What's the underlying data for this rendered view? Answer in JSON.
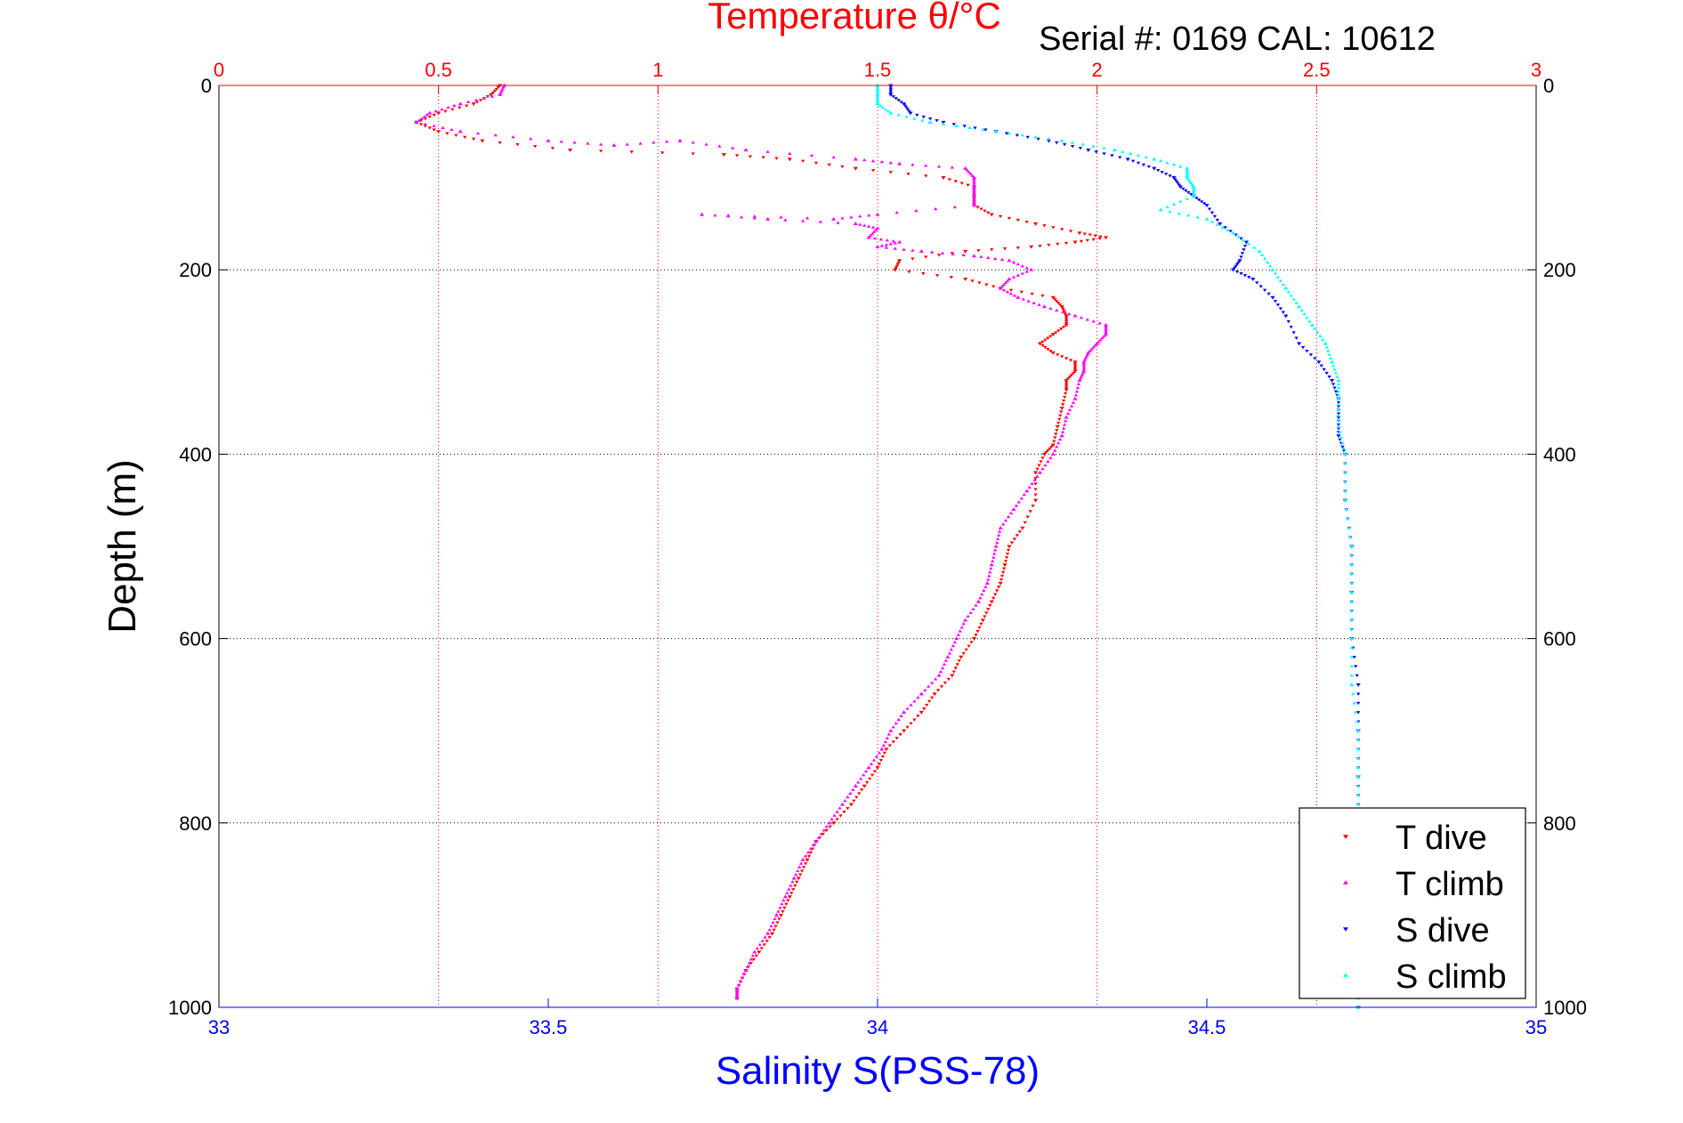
{
  "chart_data": {
    "type": "scatter",
    "title": "Temperature θ/°C",
    "subtitle": "Serial #: 0169 CAL: 10612",
    "ylabel": "Depth (m)",
    "xlabel_bottom": "Salinity S(PSS-78)",
    "y_reversed": true,
    "ylim": [
      0,
      1000
    ],
    "y_ticks": [
      0,
      200,
      400,
      600,
      800,
      1000
    ],
    "x_top": {
      "label": "Temperature θ/°C",
      "lim": [
        0,
        3
      ],
      "ticks": [
        0,
        0.5,
        1,
        1.5,
        2,
        2.5,
        3
      ],
      "tick_labels": [
        "0",
        "0.5",
        "1",
        "1.5",
        "2",
        "2.5",
        "3"
      ]
    },
    "x_bottom": {
      "label": "Salinity S(PSS-78)",
      "lim": [
        33,
        35
      ],
      "ticks": [
        33,
        33.5,
        34,
        34.5,
        35
      ],
      "tick_labels": [
        "33",
        "33.5",
        "34",
        "34.5",
        "35"
      ]
    },
    "grid": true,
    "legend_position": "bottom-right",
    "series": [
      {
        "name": "T dive",
        "axis": "temperature",
        "color": "#ff0000",
        "marker": "triangle-down",
        "points": [
          [
            0.64,
            0
          ],
          [
            0.62,
            10
          ],
          [
            0.58,
            20
          ],
          [
            0.5,
            30
          ],
          [
            0.45,
            40
          ],
          [
            0.5,
            50
          ],
          [
            0.6,
            60
          ],
          [
            0.8,
            70
          ],
          [
            1.15,
            75
          ],
          [
            1.3,
            80
          ],
          [
            1.45,
            90
          ],
          [
            1.65,
            100
          ],
          [
            1.72,
            110
          ],
          [
            1.72,
            120
          ],
          [
            1.72,
            130
          ],
          [
            1.76,
            140
          ],
          [
            1.86,
            150
          ],
          [
            1.96,
            160
          ],
          [
            2.02,
            165
          ],
          [
            1.95,
            170
          ],
          [
            1.85,
            175
          ],
          [
            1.7,
            180
          ],
          [
            1.55,
            190
          ],
          [
            1.54,
            200
          ],
          [
            1.7,
            210
          ],
          [
            1.78,
            220
          ],
          [
            1.9,
            230
          ],
          [
            1.92,
            240
          ],
          [
            1.93,
            250
          ],
          [
            1.93,
            260
          ],
          [
            1.9,
            270
          ],
          [
            1.87,
            280
          ],
          [
            1.9,
            290
          ],
          [
            1.95,
            300
          ],
          [
            1.95,
            310
          ],
          [
            1.93,
            320
          ],
          [
            1.93,
            330
          ],
          [
            1.92,
            350
          ],
          [
            1.91,
            370
          ],
          [
            1.9,
            390
          ],
          [
            1.88,
            400
          ],
          [
            1.86,
            420
          ],
          [
            1.86,
            450
          ],
          [
            1.83,
            480
          ],
          [
            1.8,
            500
          ],
          [
            1.79,
            520
          ],
          [
            1.78,
            540
          ],
          [
            1.76,
            560
          ],
          [
            1.74,
            580
          ],
          [
            1.72,
            600
          ],
          [
            1.69,
            620
          ],
          [
            1.67,
            640
          ],
          [
            1.63,
            660
          ],
          [
            1.6,
            680
          ],
          [
            1.56,
            700
          ],
          [
            1.52,
            720
          ],
          [
            1.5,
            740
          ],
          [
            1.47,
            760
          ],
          [
            1.44,
            780
          ],
          [
            1.4,
            800
          ],
          [
            1.36,
            820
          ],
          [
            1.34,
            840
          ],
          [
            1.32,
            860
          ],
          [
            1.3,
            880
          ],
          [
            1.28,
            900
          ],
          [
            1.26,
            920
          ],
          [
            1.23,
            940
          ],
          [
            1.2,
            960
          ],
          [
            1.18,
            980
          ],
          [
            1.18,
            990
          ]
        ]
      },
      {
        "name": "T climb",
        "axis": "temperature",
        "color": "#ff00ff",
        "marker": "triangle-up",
        "points": [
          [
            0.65,
            0
          ],
          [
            0.64,
            10
          ],
          [
            0.55,
            20
          ],
          [
            0.48,
            30
          ],
          [
            0.45,
            40
          ],
          [
            0.55,
            50
          ],
          [
            0.75,
            60
          ],
          [
            0.9,
            65
          ],
          [
            1.05,
            60
          ],
          [
            1.2,
            70
          ],
          [
            1.45,
            80
          ],
          [
            1.55,
            85
          ],
          [
            1.7,
            90
          ],
          [
            1.72,
            100
          ],
          [
            1.72,
            110
          ],
          [
            1.72,
            120
          ],
          [
            1.72,
            130
          ],
          [
            1.5,
            140
          ],
          [
            1.4,
            145
          ],
          [
            1.1,
            140
          ],
          [
            1.25,
            145
          ],
          [
            1.45,
            150
          ],
          [
            1.5,
            155
          ],
          [
            1.48,
            165
          ],
          [
            1.55,
            170
          ],
          [
            1.5,
            175
          ],
          [
            1.6,
            180
          ],
          [
            1.72,
            185
          ],
          [
            1.8,
            190
          ],
          [
            1.85,
            200
          ],
          [
            1.8,
            210
          ],
          [
            1.78,
            220
          ],
          [
            1.82,
            230
          ],
          [
            1.88,
            240
          ],
          [
            1.95,
            250
          ],
          [
            2.02,
            260
          ],
          [
            2.02,
            270
          ],
          [
            2.0,
            280
          ],
          [
            1.98,
            290
          ],
          [
            1.97,
            300
          ],
          [
            1.97,
            310
          ],
          [
            1.96,
            320
          ],
          [
            1.95,
            340
          ],
          [
            1.93,
            360
          ],
          [
            1.92,
            380
          ],
          [
            1.9,
            400
          ],
          [
            1.87,
            420
          ],
          [
            1.84,
            440
          ],
          [
            1.81,
            460
          ],
          [
            1.78,
            480
          ],
          [
            1.77,
            500
          ],
          [
            1.76,
            520
          ],
          [
            1.75,
            540
          ],
          [
            1.73,
            560
          ],
          [
            1.7,
            580
          ],
          [
            1.68,
            600
          ],
          [
            1.66,
            620
          ],
          [
            1.64,
            640
          ],
          [
            1.6,
            660
          ],
          [
            1.56,
            680
          ],
          [
            1.53,
            700
          ],
          [
            1.51,
            720
          ],
          [
            1.48,
            740
          ],
          [
            1.45,
            760
          ],
          [
            1.42,
            780
          ],
          [
            1.39,
            800
          ],
          [
            1.36,
            820
          ],
          [
            1.33,
            840
          ],
          [
            1.31,
            860
          ],
          [
            1.29,
            880
          ],
          [
            1.27,
            900
          ],
          [
            1.25,
            920
          ],
          [
            1.22,
            940
          ],
          [
            1.2,
            960
          ],
          [
            1.18,
            980
          ],
          [
            1.18,
            990
          ]
        ]
      },
      {
        "name": "S dive",
        "axis": "salinity",
        "color": "#0000ff",
        "marker": "triangle-down",
        "points": [
          [
            34.02,
            0
          ],
          [
            34.02,
            10
          ],
          [
            34.04,
            20
          ],
          [
            34.05,
            30
          ],
          [
            34.1,
            40
          ],
          [
            34.18,
            50
          ],
          [
            34.26,
            60
          ],
          [
            34.32,
            70
          ],
          [
            34.38,
            80
          ],
          [
            34.42,
            90
          ],
          [
            34.45,
            100
          ],
          [
            34.46,
            110
          ],
          [
            34.48,
            120
          ],
          [
            34.5,
            130
          ],
          [
            34.52,
            150
          ],
          [
            34.56,
            170
          ],
          [
            34.55,
            190
          ],
          [
            34.54,
            200
          ],
          [
            34.57,
            210
          ],
          [
            34.6,
            230
          ],
          [
            34.62,
            250
          ],
          [
            34.64,
            280
          ],
          [
            34.67,
            300
          ],
          [
            34.69,
            320
          ],
          [
            34.7,
            340
          ],
          [
            34.7,
            360
          ],
          [
            34.7,
            380
          ],
          [
            34.71,
            400
          ],
          [
            34.71,
            450
          ],
          [
            34.72,
            500
          ],
          [
            34.72,
            550
          ],
          [
            34.72,
            600
          ],
          [
            34.73,
            650
          ],
          [
            34.73,
            700
          ],
          [
            34.73,
            750
          ],
          [
            34.73,
            800
          ],
          [
            34.73,
            850
          ],
          [
            34.73,
            900
          ],
          [
            34.73,
            950
          ],
          [
            34.73,
            1000
          ]
        ]
      },
      {
        "name": "S climb",
        "axis": "salinity",
        "color": "#00ffff",
        "marker": "triangle-up",
        "points": [
          [
            34.0,
            0
          ],
          [
            34.0,
            10
          ],
          [
            34.0,
            20
          ],
          [
            34.02,
            30
          ],
          [
            34.08,
            40
          ],
          [
            34.18,
            50
          ],
          [
            34.28,
            60
          ],
          [
            34.36,
            70
          ],
          [
            34.42,
            80
          ],
          [
            34.47,
            90
          ],
          [
            34.47,
            100
          ],
          [
            34.48,
            110
          ],
          [
            34.48,
            120
          ],
          [
            34.43,
            135
          ],
          [
            34.5,
            145
          ],
          [
            34.54,
            160
          ],
          [
            34.58,
            180
          ],
          [
            34.6,
            200
          ],
          [
            34.62,
            220
          ],
          [
            34.64,
            240
          ],
          [
            34.66,
            260
          ],
          [
            34.68,
            280
          ],
          [
            34.69,
            300
          ],
          [
            34.7,
            320
          ],
          [
            34.7,
            340
          ],
          [
            34.7,
            370
          ],
          [
            34.71,
            400
          ],
          [
            34.71,
            450
          ],
          [
            34.72,
            500
          ],
          [
            34.72,
            550
          ],
          [
            34.72,
            600
          ],
          [
            34.72,
            650
          ],
          [
            34.73,
            700
          ],
          [
            34.73,
            750
          ],
          [
            34.73,
            800
          ],
          [
            34.73,
            850
          ],
          [
            34.73,
            900
          ],
          [
            34.73,
            950
          ],
          [
            34.73,
            1000
          ]
        ]
      }
    ]
  }
}
